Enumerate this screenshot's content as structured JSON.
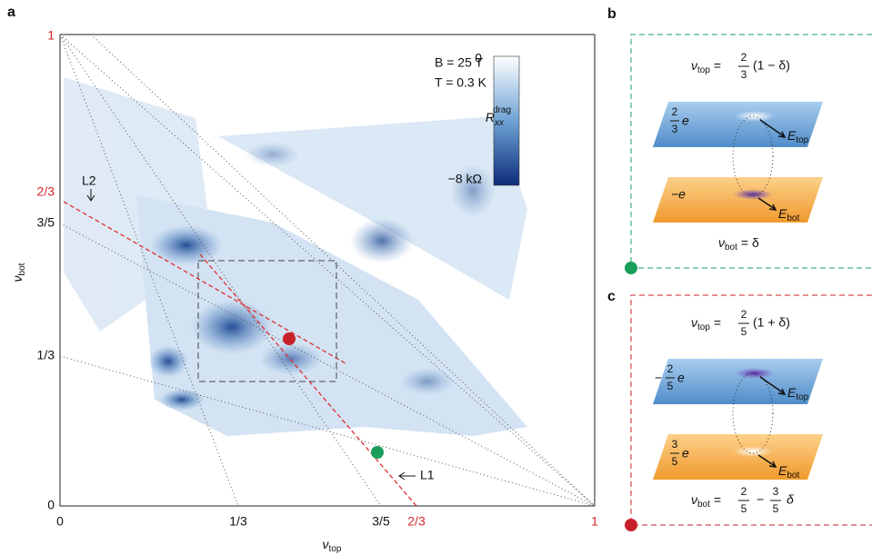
{
  "panel_a": {
    "label": "a",
    "x_axis": {
      "symbol": "ν",
      "sub": "top",
      "ticks": [
        "0",
        "1/3",
        "3/5",
        "2/3",
        "1"
      ]
    },
    "y_axis": {
      "symbol": "ν",
      "sub": "bot",
      "ticks": [
        "0",
        "1/3",
        "3/5",
        "2/3",
        "1"
      ]
    },
    "conditions": [
      "B = 25 T",
      "T = 0.3 K"
    ],
    "colorbar": {
      "max": "0",
      "min": "−8 kΩ",
      "symbol": "R",
      "sub": "xx",
      "sup": "drag"
    },
    "lines": [
      "L1",
      "L2"
    ]
  },
  "panel_b": {
    "label": "b",
    "top_filling": {
      "symbol": "ν",
      "sub": "top",
      "eq": "=",
      "num": "2",
      "den": "3",
      "rest": "(1 − δ)"
    },
    "top_charge": {
      "num": "2",
      "den": "3",
      "unit": "e"
    },
    "top_field": {
      "symbol": "E",
      "sub": "top"
    },
    "bottom_charge": {
      "text": "−e"
    },
    "bottom_field": {
      "symbol": "E",
      "sub": "bot"
    },
    "bottom_filling": {
      "symbol": "ν",
      "sub": "bot",
      "rest": "= δ"
    }
  },
  "panel_c": {
    "label": "c",
    "top_filling": {
      "symbol": "ν",
      "sub": "top",
      "eq": "=",
      "num": "2",
      "den": "5",
      "rest": "(1 + δ)"
    },
    "top_charge": {
      "sign": "−",
      "num": "2",
      "den": "5",
      "unit": "e"
    },
    "top_field": {
      "symbol": "E",
      "sub": "top"
    },
    "bottom_charge": {
      "num": "3",
      "den": "5",
      "unit": "e"
    },
    "bottom_field": {
      "symbol": "E",
      "sub": "bot"
    },
    "bottom_filling": {
      "symbol": "ν",
      "sub": "bot",
      "eq": "=",
      "num1": "2",
      "den1": "5",
      "minus": "−",
      "num2": "3",
      "den2": "5",
      "rest": "δ"
    }
  }
}
